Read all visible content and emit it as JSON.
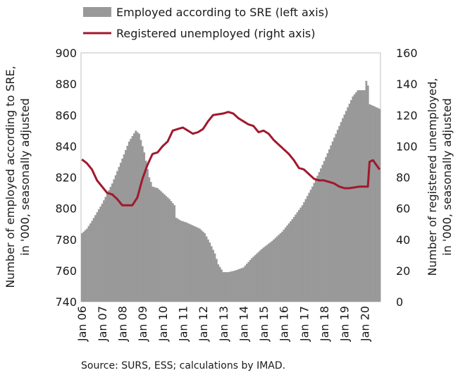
{
  "chart_data": {
    "type": "bar+line",
    "legend": {
      "placement": "top",
      "items": [
        {
          "label": "Employed according to SRE (left axis)",
          "color": "#999999",
          "kind": "bar"
        },
        {
          "label": "Registered unemployed (right axis)",
          "color": "#a0192e",
          "kind": "line"
        }
      ]
    },
    "y_left": {
      "label_line1": "Number of employed according to SRE,",
      "label_line2": "in '000, seasonally adjusted",
      "min": 740,
      "max": 900,
      "ticks": [
        "900",
        "880",
        "860",
        "840",
        "820",
        "800",
        "780",
        "760",
        "740"
      ]
    },
    "y_right": {
      "label_line1": "Number of registered unemployed,",
      "label_line2": "in '000, seasonally adjusted",
      "min": 0,
      "max": 160,
      "ticks": [
        "160",
        "140",
        "120",
        "100",
        "80",
        "60",
        "40",
        "20",
        "0"
      ]
    },
    "x_ticks": [
      "Jan 06",
      "Jan 07",
      "Jan 08",
      "Jan 09",
      "Jan 10",
      "Jan 11",
      "Jan 12",
      "Jan 13",
      "Jan 14",
      "Jan 15",
      "Jan 16",
      "Jan 17",
      "Jan 18",
      "Jan 19",
      "Jan 20"
    ],
    "period": {
      "start": "2006-01",
      "end": "2020-10",
      "frequency": "monthly"
    },
    "series": [
      {
        "name": "Employed according to SRE (left axis)",
        "axis": "left",
        "type": "bar",
        "color": "#999999",
        "knots": [
          [
            "2006-01",
            784
          ],
          [
            "2006-04",
            787
          ],
          [
            "2006-07",
            792
          ],
          [
            "2007-01",
            803
          ],
          [
            "2007-07",
            816
          ],
          [
            "2008-01",
            832
          ],
          [
            "2008-05",
            843
          ],
          [
            "2008-09",
            850
          ],
          [
            "2008-11",
            848
          ],
          [
            "2009-02",
            836
          ],
          [
            "2009-05",
            820
          ],
          [
            "2009-07",
            814
          ],
          [
            "2009-10",
            813
          ],
          [
            "2010-01",
            810
          ],
          [
            "2010-05",
            806
          ],
          [
            "2010-08",
            802
          ],
          [
            "2010-09",
            794
          ],
          [
            "2010-12",
            792
          ],
          [
            "2011-03",
            791
          ],
          [
            "2011-07",
            789
          ],
          [
            "2011-11",
            787
          ],
          [
            "2012-02",
            784
          ],
          [
            "2012-05",
            778
          ],
          [
            "2012-08",
            771
          ],
          [
            "2012-10",
            764
          ],
          [
            "2013-01",
            759
          ],
          [
            "2013-04",
            759
          ],
          [
            "2013-08",
            760
          ],
          [
            "2014-01",
            762
          ],
          [
            "2014-06",
            768
          ],
          [
            "2014-12",
            774
          ],
          [
            "2015-06",
            779
          ],
          [
            "2015-12",
            785
          ],
          [
            "2016-06",
            793
          ],
          [
            "2016-12",
            802
          ],
          [
            "2017-06",
            814
          ],
          [
            "2017-12",
            828
          ],
          [
            "2018-06",
            843
          ],
          [
            "2018-12",
            858
          ],
          [
            "2019-06",
            872
          ],
          [
            "2019-09",
            876
          ],
          [
            "2019-12",
            876
          ],
          [
            "2020-01",
            876
          ],
          [
            "2020-02",
            882
          ],
          [
            "2020-03",
            879
          ],
          [
            "2020-04",
            867
          ],
          [
            "2020-10",
            864
          ]
        ]
      },
      {
        "name": "Registered unemployed (right axis)",
        "axis": "right",
        "type": "line",
        "color": "#a0192e",
        "knots": [
          [
            "2006-01",
            91.5
          ],
          [
            "2006-04",
            89
          ],
          [
            "2006-07",
            85
          ],
          [
            "2006-10",
            78
          ],
          [
            "2007-01",
            74
          ],
          [
            "2007-04",
            70
          ],
          [
            "2007-07",
            69
          ],
          [
            "2007-10",
            66
          ],
          [
            "2008-01",
            62
          ],
          [
            "2008-04",
            62
          ],
          [
            "2008-07",
            62
          ],
          [
            "2008-10",
            67
          ],
          [
            "2009-01",
            79
          ],
          [
            "2009-04",
            88
          ],
          [
            "2009-07",
            95
          ],
          [
            "2009-10",
            96
          ],
          [
            "2010-01",
            100
          ],
          [
            "2010-04",
            103
          ],
          [
            "2010-07",
            110
          ],
          [
            "2010-10",
            111
          ],
          [
            "2011-01",
            112
          ],
          [
            "2011-04",
            110
          ],
          [
            "2011-07",
            108
          ],
          [
            "2011-10",
            109
          ],
          [
            "2012-01",
            111
          ],
          [
            "2012-04",
            116
          ],
          [
            "2012-07",
            120
          ],
          [
            "2012-10",
            120.5
          ],
          [
            "2013-01",
            121
          ],
          [
            "2013-04",
            122
          ],
          [
            "2013-07",
            121
          ],
          [
            "2013-10",
            118
          ],
          [
            "2014-01",
            116
          ],
          [
            "2014-04",
            114
          ],
          [
            "2014-07",
            113
          ],
          [
            "2014-10",
            109
          ],
          [
            "2015-01",
            110
          ],
          [
            "2015-04",
            108
          ],
          [
            "2015-07",
            104
          ],
          [
            "2015-10",
            101
          ],
          [
            "2016-01",
            98
          ],
          [
            "2016-04",
            95
          ],
          [
            "2016-07",
            91
          ],
          [
            "2016-10",
            86
          ],
          [
            "2017-01",
            85
          ],
          [
            "2017-04",
            82
          ],
          [
            "2017-07",
            79
          ],
          [
            "2017-10",
            78
          ],
          [
            "2018-01",
            78
          ],
          [
            "2018-04",
            77
          ],
          [
            "2018-07",
            76
          ],
          [
            "2018-10",
            74
          ],
          [
            "2019-01",
            73
          ],
          [
            "2019-04",
            73
          ],
          [
            "2019-07",
            73.5
          ],
          [
            "2019-10",
            74
          ],
          [
            "2020-01",
            74
          ],
          [
            "2020-03",
            74
          ],
          [
            "2020-04",
            90
          ],
          [
            "2020-06",
            91
          ],
          [
            "2020-08",
            88
          ],
          [
            "2020-10",
            85
          ]
        ]
      }
    ]
  },
  "source_note": "Source: SURS, ESS; calculations by IMAD."
}
